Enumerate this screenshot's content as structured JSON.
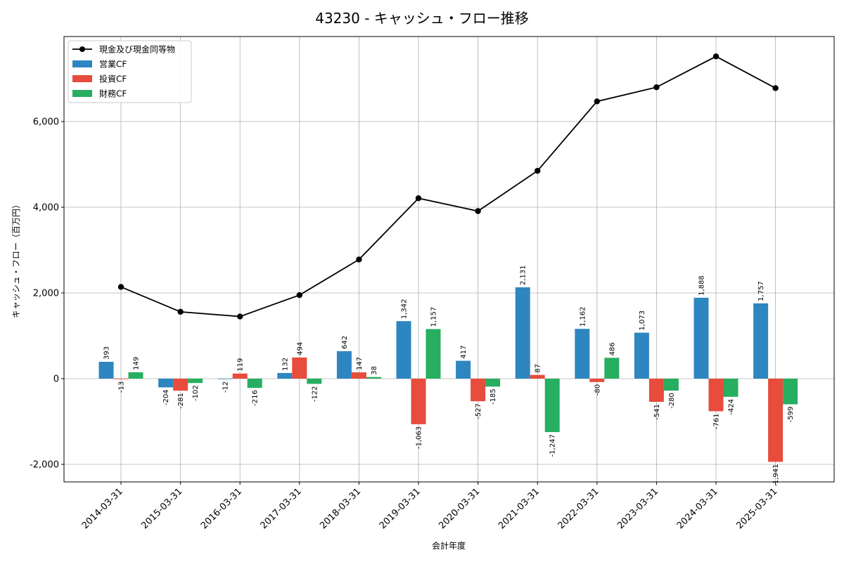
{
  "chart_data": {
    "type": "bar+line",
    "title": "43230 - キャッシュ・フロー推移",
    "xlabel": "会計年度",
    "ylabel": "キャッシュ・フロー（百万円）",
    "ylim": [
      -2400,
      8000
    ],
    "yticks": [
      -2000,
      0,
      2000,
      4000,
      6000
    ],
    "ytick_labels": [
      "-2,000",
      "0",
      "2,000",
      "4,000",
      "6,000"
    ],
    "grid": true,
    "legend_position": "top-left",
    "categories": [
      "2014-03-31",
      "2015-03-31",
      "2016-03-31",
      "2017-03-31",
      "2018-03-31",
      "2019-03-31",
      "2020-03-31",
      "2021-03-31",
      "2022-03-31",
      "2023-03-31",
      "2024-03-31",
      "2025-03-31"
    ],
    "series": [
      {
        "name": "営業CF",
        "kind": "bar",
        "color": "#2e86c1",
        "values": [
          393,
          -204,
          -12,
          132,
          642,
          1342,
          417,
          2131,
          1162,
          1073,
          1888,
          1757
        ],
        "labels": [
          "393",
          "-204",
          "-12",
          "132",
          "642",
          "1,342",
          "417",
          "2,131",
          "1,162",
          "1,073",
          "1,888",
          "1,757"
        ]
      },
      {
        "name": "投資CF",
        "kind": "bar",
        "color": "#e74c3c",
        "values": [
          -13,
          -281,
          119,
          494,
          147,
          -1063,
          -527,
          87,
          -80,
          -541,
          -761,
          -1941
        ],
        "labels": [
          "-13",
          "-281",
          "119",
          "494",
          "147",
          "-1,063",
          "-527",
          "87",
          "-80",
          "-541",
          "-761",
          "-1,941"
        ]
      },
      {
        "name": "財務CF",
        "kind": "bar",
        "color": "#27ae60",
        "values": [
          149,
          -102,
          -216,
          -122,
          38,
          1157,
          -185,
          -1247,
          486,
          -280,
          -424,
          -599
        ],
        "labels": [
          "149",
          "-102",
          "-216",
          "-122",
          "38",
          "1,157",
          "-185",
          "-1,247",
          "486",
          "-280",
          "-424",
          "-599"
        ]
      },
      {
        "name": "現金及び現金同等物",
        "kind": "line",
        "color": "#000000",
        "values": [
          2140,
          1560,
          1450,
          1950,
          2780,
          4210,
          3910,
          4850,
          6470,
          6800,
          7520,
          6780
        ]
      }
    ]
  }
}
